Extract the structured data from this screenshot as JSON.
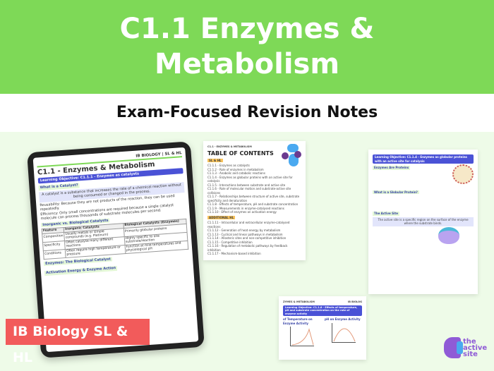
{
  "header": {
    "title_line1": "C1.1 Enzymes &",
    "title_line2": "Metabolism",
    "subtitle": "Exam-Focused Revision Notes"
  },
  "badge": "IB Biology SL & HL",
  "logo": {
    "line1": "the",
    "line2": "active",
    "line3": "site"
  },
  "colors": {
    "header_green": "#7ed957",
    "badge_red": "#f25b5b",
    "background": "#eefbe8",
    "accent_blue": "#4a52d6"
  },
  "tablet": {
    "tag": "IB BIOLOGY | SL & HL",
    "title": "C1.1 - Enzymes & Metabolism",
    "objective": "Learning Objective: C1.1.1 - Enzymes as catalysts",
    "sec1": "What is a Catalyst?",
    "definition": "A catalyst is a substance that increases the rate of a chemical reaction without being consumed or changed in the process.",
    "bullets": [
      "Reusability: Because they are not products of the reaction, they can be used repeatedly.",
      "Efficiency: Only small concentrations are required because a single catalyst molecule can process thousands of substrate molecules per second."
    ],
    "sec2": "Inorganic vs. Biological Catalysts",
    "table": {
      "headers": [
        "Feature",
        "Inorganic Catalysts",
        "Biological Catalysts (Enzymes)"
      ],
      "rows": [
        [
          "Composition",
          "Usually metals or simple compounds (e.g. Platinum)",
          "Primarily globular proteins"
        ],
        [
          "Specificity",
          "Often catalyse many different reactions",
          "Highly specific to one substrate/reaction"
        ],
        [
          "Conditions",
          "Often require high temperature or pressure",
          "Function at mild temperatures and physiological pH"
        ]
      ]
    },
    "sec3": "Enzymes: The Biological Catalyst",
    "sec4": "Activation Energy & Enzyme Action"
  },
  "doc_toc": {
    "tag": "C1.1 - ENZYMES & METABOLISM",
    "title": "TABLE OF CONTENTS",
    "sl_label": "SL & HL",
    "sl_items": [
      "C1.1.1 - Enzymes as catalysts",
      "C1.1.2 - Role of enzymes in metabolism",
      "C1.1.3 - Anabolic and catabolic reactions",
      "C1.1.4 - Enzymes as globular proteins with an active site for catalysis",
      "C1.1.5 - Interactions between substrate and active site",
      "C1.1.6 - Role of molecular motion and substrate-active site collisions",
      "C1.1.7 - Relationships between structure of active site, substrate specificity and denaturation",
      "C1.1.8 - Effects of temperature, pH and substrate concentration",
      "C1.1.9 - Measurements in enzyme-catalysed reactions",
      "C1.1.10 - Effect of enzymes on activation energy"
    ],
    "hl_label": "ADDITIONAL HL",
    "hl_items": [
      "C1.1.11 - Intracellular and extracellular enzyme-catalysed reactions",
      "C1.1.12 - Generation of heat energy by metabolism",
      "C1.1.13 - Cyclical and linear pathways in metabolism",
      "C1.1.14 - Allosteric sites and non-competitive inhibition",
      "C1.1.15 - Competitive inhibition",
      "C1.1.16 - Regulation of metabolic pathways by feedback inhibition",
      "C1.1.17 - Mechanism-based inhibition"
    ]
  },
  "doc_temp": {
    "tag": "ZYMES & METABOLISM",
    "tag_right": "IB BIOLOG",
    "objective": "Learning Objective: C1.1.8 - Effects of temperature, pH and substrate concentration on the rate of enzyme activity",
    "sec1": "of Temperature on Enzyme Activity",
    "sec2": "pH on Enzyme Activity"
  },
  "doc_active": {
    "objective": "Learning Objective: C1.1.4 - Enzymes as globular proteins with an active site for catalysis",
    "sec1": "Enzymes Are Proteins",
    "sec2": "What is a Globular Protein?",
    "sec3": "The Active Site",
    "box": "The active site is a specific region on the surface of the enzyme where the substrate binds."
  }
}
